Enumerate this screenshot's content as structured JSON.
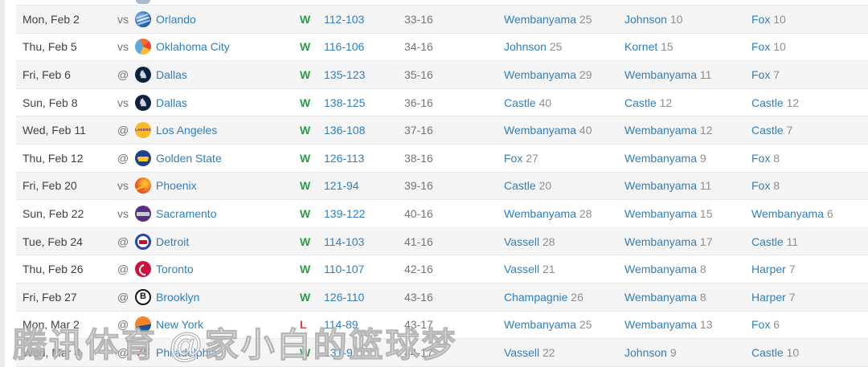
{
  "colors": {
    "win": "#2a9d45",
    "loss": "#e23b3f",
    "link": "#2e7fc4",
    "stripe": "#f5f5f5",
    "text_primary": "#414141",
    "text_muted": "#757575"
  },
  "watermark": {
    "text": "腾讯体育 @家小白的篮球梦"
  },
  "schedule": {
    "rows": [
      {
        "date": "Mon, Feb 2",
        "venue": "vs",
        "team": {
          "name": "Orlando",
          "key": "orl",
          "logo_name": "orlando-magic-logo",
          "logo_text": ""
        },
        "result": "W",
        "score": "112-103",
        "record": "33-16",
        "leaders": [
          {
            "player": "Wembanyama",
            "value": "25"
          },
          {
            "player": "Johnson",
            "value": "10"
          },
          {
            "player": "Fox",
            "value": "10"
          }
        ]
      },
      {
        "date": "Thu, Feb 5",
        "venue": "vs",
        "team": {
          "name": "Oklahoma City",
          "key": "okc",
          "logo_name": "oklahoma-city-thunder-logo",
          "logo_text": ""
        },
        "result": "W",
        "score": "116-106",
        "record": "34-16",
        "leaders": [
          {
            "player": "Johnson",
            "value": "25"
          },
          {
            "player": "Kornet",
            "value": "15"
          },
          {
            "player": "Fox",
            "value": "10"
          }
        ]
      },
      {
        "date": "Fri, Feb 6",
        "venue": "@",
        "team": {
          "name": "Dallas",
          "key": "dal",
          "logo_name": "dallas-mavericks-logo",
          "logo_text": "♞"
        },
        "result": "W",
        "score": "135-123",
        "record": "35-16",
        "leaders": [
          {
            "player": "Wembanyama",
            "value": "29"
          },
          {
            "player": "Wembanyama",
            "value": "11"
          },
          {
            "player": "Fox",
            "value": "7"
          }
        ]
      },
      {
        "date": "Sun, Feb 8",
        "venue": "vs",
        "team": {
          "name": "Dallas",
          "key": "dal",
          "logo_name": "dallas-mavericks-logo",
          "logo_text": "♞"
        },
        "result": "W",
        "score": "138-125",
        "record": "36-16",
        "leaders": [
          {
            "player": "Castle",
            "value": "40"
          },
          {
            "player": "Castle",
            "value": "12"
          },
          {
            "player": "Castle",
            "value": "12"
          }
        ]
      },
      {
        "date": "Wed, Feb 11",
        "venue": "@",
        "team": {
          "name": "Los Angeles",
          "key": "lal",
          "logo_name": "los-angeles-lakers-logo",
          "logo_text": "LAKERS"
        },
        "result": "W",
        "score": "136-108",
        "record": "37-16",
        "leaders": [
          {
            "player": "Wembanyama",
            "value": "40"
          },
          {
            "player": "Wembanyama",
            "value": "12"
          },
          {
            "player": "Castle",
            "value": "7"
          }
        ]
      },
      {
        "date": "Thu, Feb 12",
        "venue": "@",
        "team": {
          "name": "Golden State",
          "key": "gsw",
          "logo_name": "golden-state-warriors-logo",
          "logo_text": ""
        },
        "result": "W",
        "score": "126-113",
        "record": "38-16",
        "leaders": [
          {
            "player": "Fox",
            "value": "27"
          },
          {
            "player": "Wembanyama",
            "value": "9"
          },
          {
            "player": "Fox",
            "value": "8"
          }
        ]
      },
      {
        "date": "Fri, Feb 20",
        "venue": "vs",
        "team": {
          "name": "Phoenix",
          "key": "phx",
          "logo_name": "phoenix-suns-logo",
          "logo_text": ""
        },
        "result": "W",
        "score": "121-94",
        "record": "39-16",
        "leaders": [
          {
            "player": "Castle",
            "value": "20"
          },
          {
            "player": "Wembanyama",
            "value": "11"
          },
          {
            "player": "Fox",
            "value": "8"
          }
        ]
      },
      {
        "date": "Sun, Feb 22",
        "venue": "vs",
        "team": {
          "name": "Sacramento",
          "key": "sac",
          "logo_name": "sacramento-kings-logo",
          "logo_text": ""
        },
        "result": "W",
        "score": "139-122",
        "record": "40-16",
        "leaders": [
          {
            "player": "Wembanyama",
            "value": "28"
          },
          {
            "player": "Wembanyama",
            "value": "15"
          },
          {
            "player": "Wembanyama",
            "value": "6"
          }
        ]
      },
      {
        "date": "Tue, Feb 24",
        "venue": "@",
        "team": {
          "name": "Detroit",
          "key": "det",
          "logo_name": "detroit-pistons-logo",
          "logo_text": ""
        },
        "result": "W",
        "score": "114-103",
        "record": "41-16",
        "leaders": [
          {
            "player": "Vassell",
            "value": "28"
          },
          {
            "player": "Wembanyama",
            "value": "17"
          },
          {
            "player": "Castle",
            "value": "11"
          }
        ]
      },
      {
        "date": "Thu, Feb 26",
        "venue": "@",
        "team": {
          "name": "Toronto",
          "key": "tor",
          "logo_name": "toronto-raptors-logo",
          "logo_text": ""
        },
        "result": "W",
        "score": "110-107",
        "record": "42-16",
        "leaders": [
          {
            "player": "Vassell",
            "value": "21"
          },
          {
            "player": "Wembanyama",
            "value": "8"
          },
          {
            "player": "Harper",
            "value": "7"
          }
        ]
      },
      {
        "date": "Fri, Feb 27",
        "venue": "@",
        "team": {
          "name": "Brooklyn",
          "key": "bkn",
          "logo_name": "brooklyn-nets-logo",
          "logo_text": "B"
        },
        "result": "W",
        "score": "126-110",
        "record": "43-16",
        "leaders": [
          {
            "player": "Champagnie",
            "value": "26"
          },
          {
            "player": "Wembanyama",
            "value": "8"
          },
          {
            "player": "Harper",
            "value": "7"
          }
        ]
      },
      {
        "date": "Mon, Mar 2",
        "venue": "@",
        "team": {
          "name": "New York",
          "key": "nyk",
          "logo_name": "new-york-knicks-logo",
          "logo_text": ""
        },
        "result": "L",
        "score": "114-89",
        "record": "43-17",
        "leaders": [
          {
            "player": "Wembanyama",
            "value": "25"
          },
          {
            "player": "Wembanyama",
            "value": "13"
          },
          {
            "player": "Fox",
            "value": "6"
          }
        ]
      },
      {
        "date": "Wed, Mar 4",
        "venue": "@",
        "team": {
          "name": "Philadelphia",
          "key": "phi",
          "logo_name": "philadelphia-76ers-logo",
          "logo_text": "76"
        },
        "result": "W",
        "score": "131-91",
        "record": "44-17",
        "leaders": [
          {
            "player": "Vassell",
            "value": "22"
          },
          {
            "player": "Johnson",
            "value": "9"
          },
          {
            "player": "Castle",
            "value": "10"
          }
        ]
      }
    ]
  }
}
